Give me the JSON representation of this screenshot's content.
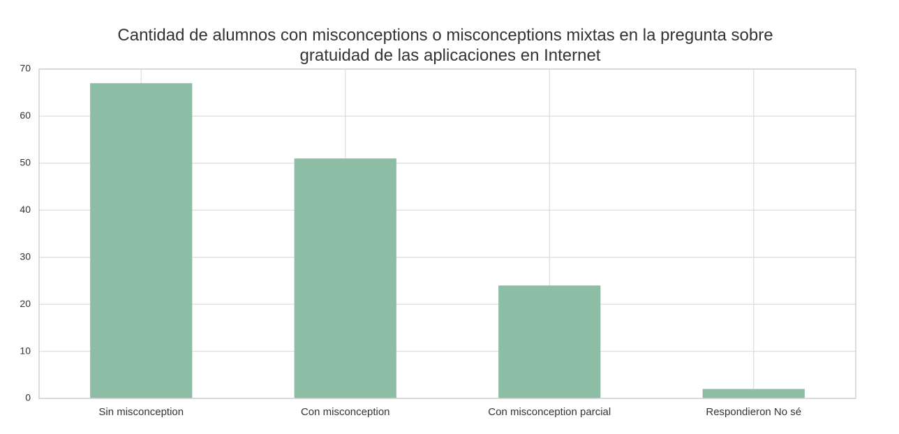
{
  "chart_data": {
    "type": "bar",
    "title_lines": [
      "Cantidad de alumnos con misconceptions o misconceptions mixtas en la pregunta sobre",
      "gratuidad de las aplicaciones en Internet"
    ],
    "categories": [
      "Sin misconception",
      "Con misconception",
      "Con misconception parcial",
      "Respondieron No sé"
    ],
    "values": [
      67,
      51,
      24,
      2
    ],
    "xlabel": "",
    "ylabel": "",
    "ylim": [
      0,
      70
    ],
    "yticks": [
      0,
      10,
      20,
      30,
      40,
      50,
      60,
      70
    ],
    "grid": true,
    "bar_color": "#8dbda5"
  }
}
